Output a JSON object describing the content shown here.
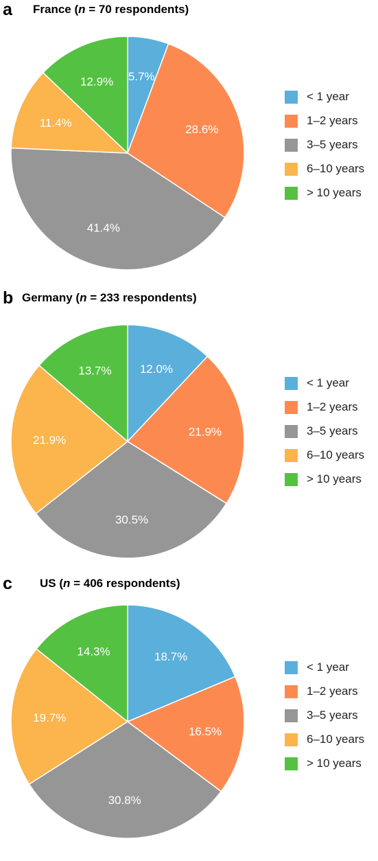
{
  "legend_labels": [
    "< 1 year",
    "1–2 years",
    "3–5 years",
    "6–10 years",
    "> 10 years"
  ],
  "colors": [
    "#5aafdb",
    "#fc8a50",
    "#969696",
    "#fcb44c",
    "#54c142"
  ],
  "chart_data": [
    {
      "type": "pie",
      "panel": "a",
      "title_prefix": "France (",
      "title_n": "n",
      "title_suffix": " = 70 respondents)",
      "categories": [
        "< 1 year",
        "1–2 years",
        "3–5 years",
        "6–10 years",
        "> 10 years"
      ],
      "values": [
        5.7,
        28.6,
        41.4,
        11.4,
        12.9
      ],
      "labels": [
        "5.7%",
        "28.6%",
        "41.4%",
        "11.4%",
        "12.9%"
      ]
    },
    {
      "type": "pie",
      "panel": "b",
      "title_prefix": "Germany (",
      "title_n": "n",
      "title_suffix": " = 233 respondents)",
      "categories": [
        "< 1 year",
        "1–2 years",
        "3–5 years",
        "6–10 years",
        "> 10 years"
      ],
      "values": [
        12.0,
        21.9,
        30.5,
        21.9,
        13.7
      ],
      "labels": [
        "12.0%",
        "21.9%",
        "30.5%",
        "21.9%",
        "13.7%"
      ]
    },
    {
      "type": "pie",
      "panel": "c",
      "title_prefix": "US (",
      "title_n": "n",
      "title_suffix": " = 406 respondents)",
      "categories": [
        "< 1 year",
        "1–2 years",
        "3–5 years",
        "6–10 years",
        "> 10 years"
      ],
      "values": [
        18.7,
        16.5,
        30.8,
        19.7,
        14.3
      ],
      "labels": [
        "18.7%",
        "16.5%",
        "30.8%",
        "19.7%",
        "14.3%"
      ]
    }
  ]
}
